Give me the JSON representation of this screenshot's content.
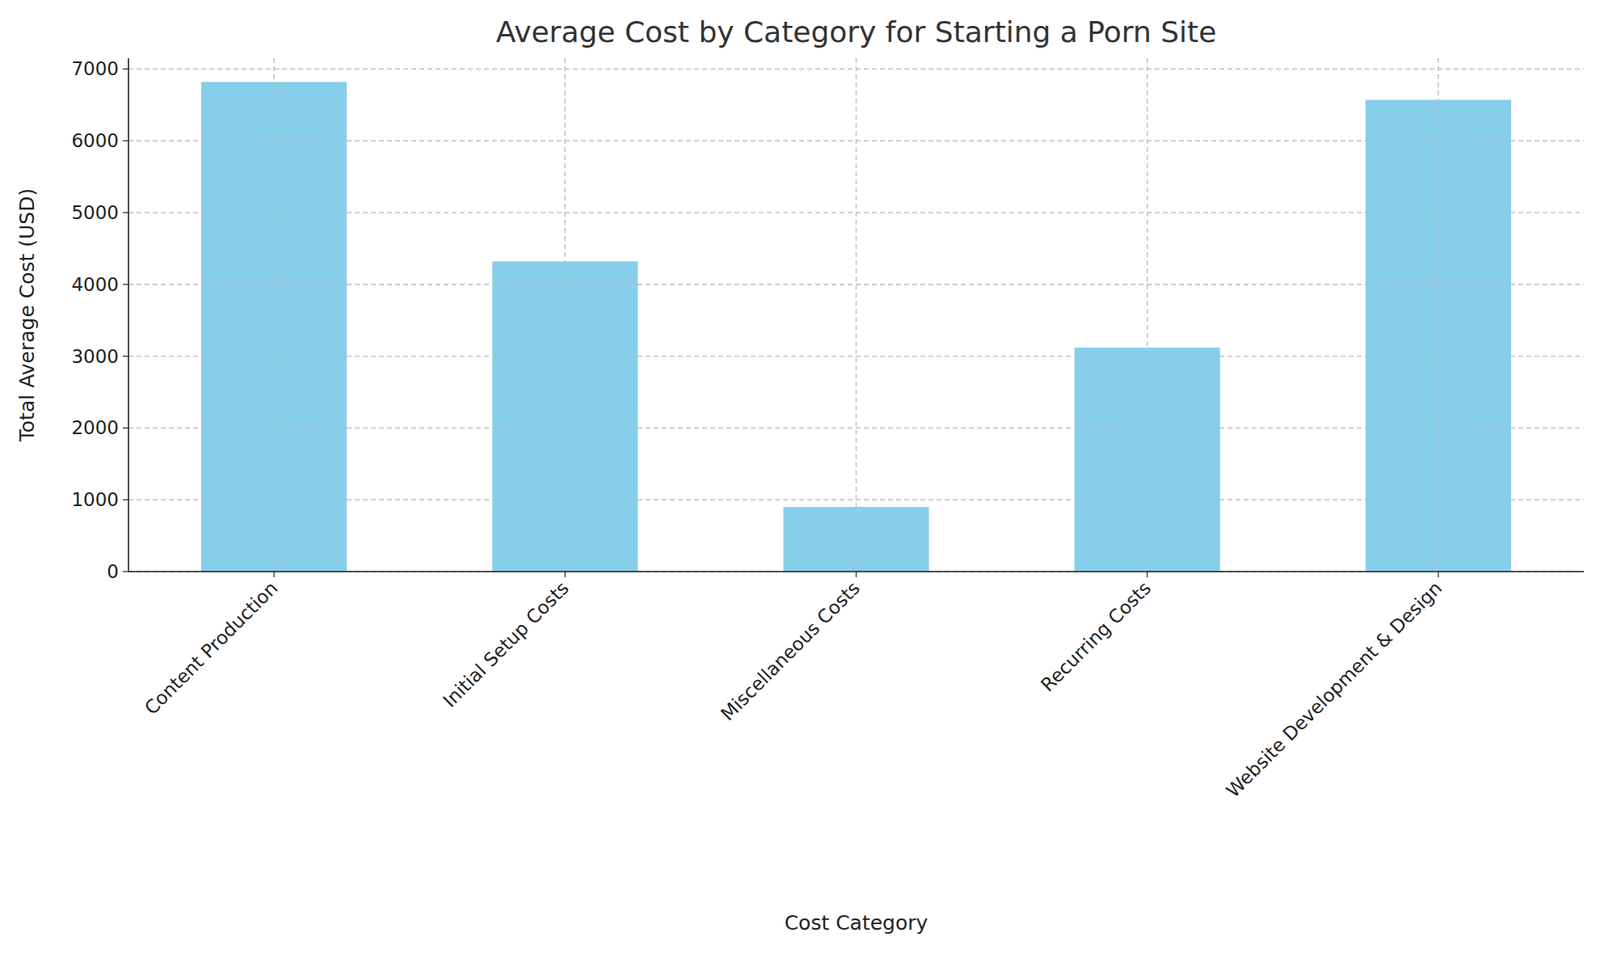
{
  "chart_data": {
    "type": "bar",
    "title": "Average Cost by Category for Starting a Porn Site",
    "x_label": "Cost Category",
    "y_label": "Total Average Cost (USD)",
    "categories": [
      "Content Production",
      "Initial Setup Costs",
      "Miscellaneous Costs",
      "Recurring Costs",
      "Website Development & Design"
    ],
    "values": [
      6820,
      4320,
      900,
      3120,
      6570
    ],
    "color": "#87ceeb",
    "ylim": [
      0,
      7150
    ],
    "yticks": [
      0,
      1000,
      2000,
      3000,
      4000,
      5000,
      6000,
      7000
    ],
    "grid": true
  }
}
